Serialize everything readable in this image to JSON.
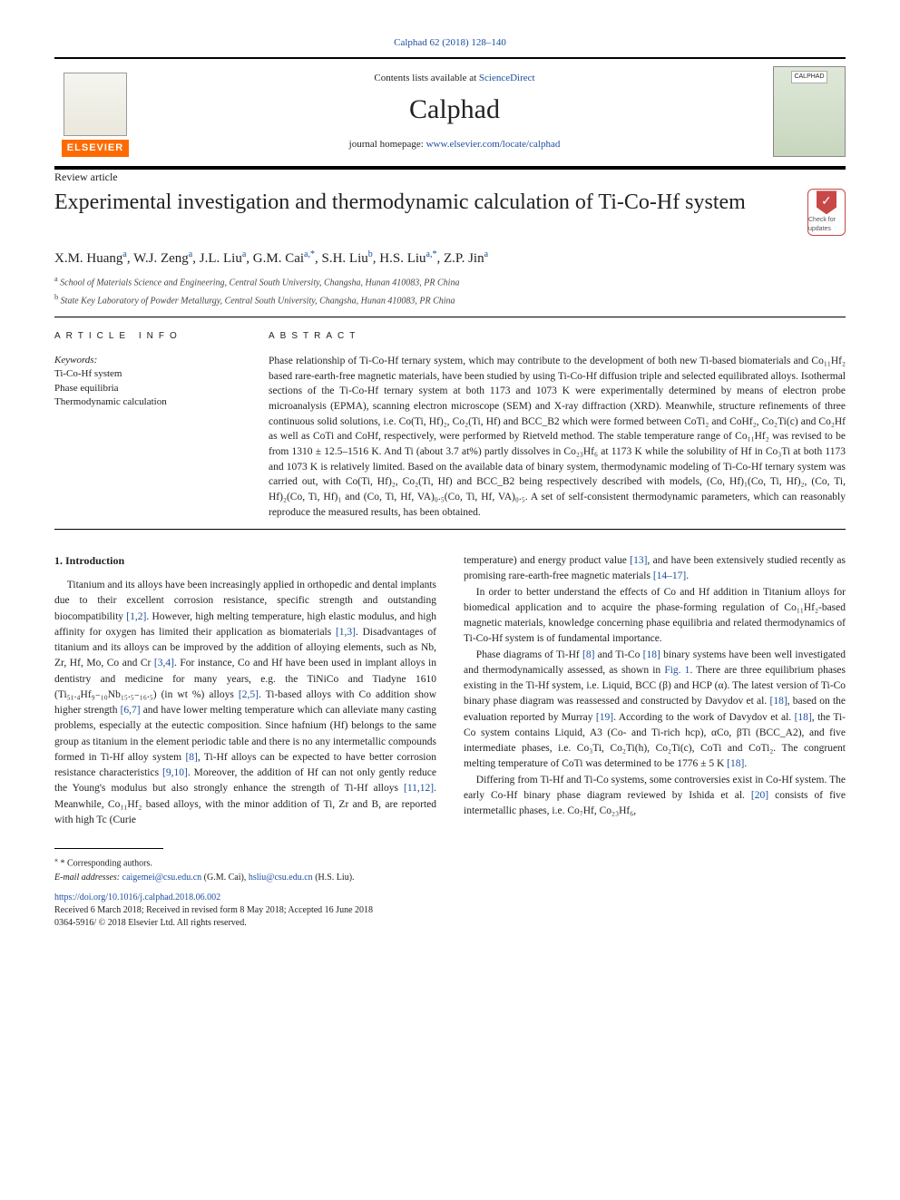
{
  "header": {
    "issue_link_text": "Calphad 62 (2018) 128–140",
    "contents_prefix": "Contents lists available at ",
    "contents_link": "ScienceDirect",
    "journal_name": "Calphad",
    "homepage_prefix": "journal homepage: ",
    "homepage_link": "www.elsevier.com/locate/calphad",
    "publisher_name": "ELSEVIER",
    "cover_label": "CALPHAD"
  },
  "article": {
    "type": "Review article",
    "title": "Experimental investigation and thermodynamic calculation of Ti-Co-Hf system",
    "updates_label": "Check for updates",
    "authors_html": "X.M. Huang<sup>a</sup>, W.J. Zeng<sup>a</sup>, J.L. Liu<sup>a</sup>, G.M. Cai<sup>a,*</sup>, S.H. Liu<sup>b</sup>, H.S. Liu<sup>a,*</sup>, Z.P. Jin<sup>a</sup>",
    "affiliations": [
      {
        "sup": "a",
        "text": "School of Materials Science and Engineering, Central South University, Changsha, Hunan 410083, PR China"
      },
      {
        "sup": "b",
        "text": "State Key Laboratory of Powder Metallurgy, Central South University, Changsha, Hunan 410083, PR China"
      }
    ]
  },
  "article_info": {
    "heading": "ARTICLE INFO",
    "kw_label": "Keywords:",
    "keywords": [
      "Ti-Co-Hf system",
      "Phase equilibria",
      "Thermodynamic calculation"
    ]
  },
  "abstract": {
    "heading": "ABSTRACT",
    "text": "Phase relationship of Ti-Co-Hf ternary system, which may contribute to the development of both new Ti-based biomaterials and Co₁₁Hf₂ based rare-earth-free magnetic materials, have been studied by using Ti-Co-Hf diffusion triple and selected equilibrated alloys. Isothermal sections of the Ti-Co-Hf ternary system at both 1173 and 1073 K were experimentally determined by means of electron probe microanalysis (EPMA), scanning electron microscope (SEM) and X-ray diffraction (XRD). Meanwhile, structure refinements of three continuous solid solutions, i.e. Co(Ti, Hf)₂, Co₂(Ti, Hf) and BCC_B2 which were formed between CoTi₂ and CoHf₂, Co₂Ti(c) and Co₂Hf as well as CoTi and CoHf, respectively, were performed by Rietveld method. The stable temperature range of Co₁₁Hf₂ was revised to be from 1310 ± 12.5–1516 K. And Ti (about 3.7 at%) partly dissolves in Co₂₃Hf₆ at 1173 K while the solubility of Hf in Co₃Ti at both 1173 and 1073 K is relatively limited. Based on the available data of binary system, thermodynamic modeling of Ti-Co-Hf ternary system was carried out, with Co(Ti, Hf)₂, Co₂(Ti, Hf) and BCC_B2 being respectively described with models, (Co, Hf)₁(Co, Ti, Hf)₂, (Co, Ti, Hf)₂(Co, Ti, Hf)₁ and (Co, Ti, Hf, VA)₀.₅(Co, Ti, Hf, VA)₀.₅. A set of self-consistent thermodynamic parameters, which can reasonably reproduce the measured results, has been obtained."
  },
  "body": {
    "section1_heading": "1. Introduction",
    "p1": "Titanium and its alloys have been increasingly applied in orthopedic and dental implants due to their excellent corrosion resistance, specific strength and outstanding biocompatibility [1,2]. However, high melting temperature, high elastic modulus, and high affinity for oxygen has limited their application as biomaterials [1,3]. Disadvantages of titanium and its alloys can be improved by the addition of alloying elements, such as Nb, Zr, Hf, Mo, Co and Cr [3,4]. For instance, Co and Hf have been used in implant alloys in dentistry and medicine for many years, e.g. the TiNiCo and Tiadyne 1610 (Ti₅₁.₄Hf₉₋₁₀Nb₁₅.₅₋₁₆.₅) (in wt %) alloys [2,5]. Ti-based alloys with Co addition show higher strength [6,7] and have lower melting temperature which can alleviate many casting problems, especially at the eutectic composition. Since hafnium (Hf) belongs to the same group as titanium in the element periodic table and there is no any intermetallic compounds formed in Ti-Hf alloy system [8], Ti-Hf alloys can be expected to have better corrosion resistance characteristics [9,10]. Moreover, the addition of Hf can not only gently reduce the Young's modulus but also strongly enhance the strength of Ti-Hf alloys [11,12]. Meanwhile, Co₁₁Hf₂ based alloys, with the minor addition of Ti, Zr and B, are reported with high Tc (Curie",
    "p2": "temperature) and energy product value [13], and have been extensively studied recently as promising rare-earth-free magnetic materials [14–17].",
    "p3": "In order to better understand the effects of Co and Hf addition in Titanium alloys for biomedical application and to acquire the phase-forming regulation of Co₁₁Hf₂-based magnetic materials, knowledge concerning phase equilibria and related thermodynamics of Ti-Co-Hf system is of fundamental importance.",
    "p4": "Phase diagrams of Ti-Hf [8] and Ti-Co [18] binary systems have been well investigated and thermodynamically assessed, as shown in Fig. 1. There are three equilibrium phases existing in the Ti-Hf system, i.e. Liquid, BCC (β) and HCP (α). The latest version of Ti-Co binary phase diagram was reassessed and constructed by Davydov et al. [18], based on the evaluation reported by Murray [19]. According to the work of Davydov et al. [18], the Ti-Co system contains Liquid, A3 (Co- and Ti-rich hcp), αCo, βTi (BCC_A2), and five intermediate phases, i.e. Co₃Ti, Co₂Ti(h), Co₂Ti(c), CoTi and CoTi₂. The congruent melting temperature of CoTi was determined to be 1776 ± 5 K [18].",
    "p5": "Differing from Ti-Hf and Ti-Co systems, some controversies exist in Co-Hf system. The early Co-Hf binary phase diagram reviewed by Ishida et al. [20] consists of five intermetallic phases, i.e. Co₇Hf, Co₂₃Hf₆,"
  },
  "footer": {
    "corr_label": "* Corresponding authors.",
    "email_label": "E-mail addresses: ",
    "emails": [
      {
        "addr": "caigemei@csu.edu.cn",
        "who": "(G.M. Cai)"
      },
      {
        "addr": "hsliu@csu.edu.cn",
        "who": "(H.S. Liu)."
      }
    ],
    "doi_link": "https://doi.org/10.1016/j.calphad.2018.06.002",
    "received": "Received 6 March 2018; Received in revised form 8 May 2018; Accepted 16 June 2018",
    "copyright": "0364-5916/ © 2018 Elsevier Ltd. All rights reserved."
  },
  "refcolor": "#1a4d9e"
}
